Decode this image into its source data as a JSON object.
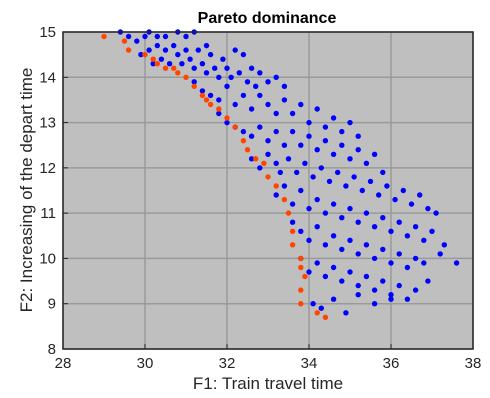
{
  "chart_data": {
    "type": "scatter",
    "title": "Pareto dominance",
    "xlabel": "F1: Train travel time",
    "ylabel": "F2: Increasing of the depart time",
    "xlim": [
      28,
      38
    ],
    "ylim": [
      8,
      15
    ],
    "x_ticks": [
      "28",
      "30",
      "32",
      "34",
      "36",
      "38"
    ],
    "y_ticks": [
      "8",
      "9",
      "10",
      "11",
      "12",
      "13",
      "14",
      "15"
    ],
    "grid": true,
    "legend": "none",
    "background": "#bfbfbf",
    "series": [
      {
        "color": "#0000ff",
        "points": [
          [
            29.4,
            15.0
          ],
          [
            29.6,
            14.9
          ],
          [
            29.8,
            14.8
          ],
          [
            30.0,
            14.9
          ],
          [
            30.1,
            15.0
          ],
          [
            30.3,
            14.9
          ],
          [
            30.5,
            14.9
          ],
          [
            30.8,
            15.0
          ],
          [
            31.0,
            14.9
          ],
          [
            31.2,
            15.0
          ],
          [
            31.5,
            14.7
          ],
          [
            29.9,
            14.5
          ],
          [
            30.1,
            14.6
          ],
          [
            30.2,
            14.3
          ],
          [
            30.3,
            14.7
          ],
          [
            30.4,
            14.4
          ],
          [
            30.5,
            14.6
          ],
          [
            30.6,
            14.3
          ],
          [
            30.7,
            14.7
          ],
          [
            30.8,
            14.5
          ],
          [
            30.9,
            14.3
          ],
          [
            31.0,
            14.6
          ],
          [
            31.1,
            14.4
          ],
          [
            31.2,
            14.2
          ],
          [
            31.3,
            14.6
          ],
          [
            31.4,
            14.3
          ],
          [
            31.5,
            14.1
          ],
          [
            31.6,
            14.5
          ],
          [
            31.7,
            14.2
          ],
          [
            31.8,
            14.0
          ],
          [
            31.9,
            14.4
          ],
          [
            32.0,
            14.2
          ],
          [
            32.1,
            14.0
          ],
          [
            32.2,
            14.6
          ],
          [
            32.3,
            14.1
          ],
          [
            32.4,
            14.5
          ],
          [
            32.5,
            13.9
          ],
          [
            32.6,
            14.2
          ],
          [
            32.7,
            13.8
          ],
          [
            32.8,
            14.1
          ],
          [
            33.0,
            13.9
          ],
          [
            33.2,
            14.0
          ],
          [
            33.4,
            13.8
          ],
          [
            31.2,
            13.9
          ],
          [
            31.4,
            13.7
          ],
          [
            31.6,
            13.6
          ],
          [
            31.8,
            13.5
          ],
          [
            32.0,
            13.8
          ],
          [
            32.2,
            13.4
          ],
          [
            32.4,
            13.6
          ],
          [
            32.6,
            13.3
          ],
          [
            32.8,
            13.6
          ],
          [
            33.0,
            13.4
          ],
          [
            33.2,
            13.2
          ],
          [
            33.4,
            13.5
          ],
          [
            33.6,
            13.2
          ],
          [
            33.8,
            13.4
          ],
          [
            34.0,
            13.0
          ],
          [
            34.2,
            13.3
          ],
          [
            34.4,
            12.9
          ],
          [
            34.6,
            13.1
          ],
          [
            34.8,
            12.8
          ],
          [
            35.0,
            13.0
          ],
          [
            35.2,
            12.7
          ],
          [
            31.8,
            13.2
          ],
          [
            32.0,
            13.0
          ],
          [
            32.2,
            12.9
          ],
          [
            32.4,
            12.8
          ],
          [
            32.6,
            12.7
          ],
          [
            32.8,
            12.9
          ],
          [
            33.0,
            12.6
          ],
          [
            33.2,
            12.8
          ],
          [
            33.4,
            12.5
          ],
          [
            33.6,
            12.8
          ],
          [
            33.8,
            12.5
          ],
          [
            34.0,
            12.7
          ],
          [
            34.2,
            12.4
          ],
          [
            34.4,
            12.6
          ],
          [
            34.6,
            12.3
          ],
          [
            34.8,
            12.5
          ],
          [
            35.0,
            12.2
          ],
          [
            35.2,
            12.4
          ],
          [
            35.4,
            12.1
          ],
          [
            35.6,
            12.3
          ],
          [
            35.8,
            11.9
          ],
          [
            32.6,
            12.2
          ],
          [
            32.8,
            12.0
          ],
          [
            33.0,
            12.3
          ],
          [
            33.2,
            12.1
          ],
          [
            33.3,
            11.9
          ],
          [
            33.5,
            12.2
          ],
          [
            33.7,
            11.9
          ],
          [
            33.9,
            12.1
          ],
          [
            34.1,
            11.8
          ],
          [
            34.3,
            12.0
          ],
          [
            34.5,
            11.7
          ],
          [
            34.7,
            11.9
          ],
          [
            34.9,
            11.6
          ],
          [
            35.1,
            11.8
          ],
          [
            35.3,
            11.5
          ],
          [
            35.5,
            11.7
          ],
          [
            35.7,
            11.4
          ],
          [
            35.9,
            11.6
          ],
          [
            36.1,
            11.3
          ],
          [
            36.3,
            11.5
          ],
          [
            36.5,
            11.2
          ],
          [
            36.7,
            11.4
          ],
          [
            36.9,
            11.1
          ],
          [
            37.1,
            11.0
          ],
          [
            33.2,
            11.4
          ],
          [
            33.4,
            11.6
          ],
          [
            33.6,
            11.2
          ],
          [
            33.8,
            11.5
          ],
          [
            34.0,
            11.1
          ],
          [
            34.2,
            11.3
          ],
          [
            34.4,
            11.0
          ],
          [
            34.6,
            11.2
          ],
          [
            34.8,
            10.9
          ],
          [
            35.0,
            11.1
          ],
          [
            35.2,
            10.8
          ],
          [
            35.4,
            11.0
          ],
          [
            35.6,
            10.7
          ],
          [
            35.8,
            10.9
          ],
          [
            36.0,
            10.6
          ],
          [
            36.2,
            10.8
          ],
          [
            36.4,
            10.5
          ],
          [
            36.6,
            10.7
          ],
          [
            36.8,
            10.4
          ],
          [
            37.0,
            10.6
          ],
          [
            37.3,
            10.3
          ],
          [
            33.6,
            10.8
          ],
          [
            33.8,
            10.6
          ],
          [
            34.0,
            10.4
          ],
          [
            34.2,
            10.7
          ],
          [
            34.4,
            10.3
          ],
          [
            34.6,
            10.5
          ],
          [
            34.8,
            10.2
          ],
          [
            35.0,
            10.4
          ],
          [
            35.2,
            10.1
          ],
          [
            35.4,
            10.3
          ],
          [
            35.6,
            10.0
          ],
          [
            35.8,
            10.2
          ],
          [
            36.0,
            9.9
          ],
          [
            36.2,
            10.1
          ],
          [
            36.4,
            9.8
          ],
          [
            36.6,
            10.0
          ],
          [
            36.8,
            9.9
          ],
          [
            37.2,
            10.1
          ],
          [
            37.6,
            9.9
          ],
          [
            33.8,
            10.0
          ],
          [
            34.0,
            9.7
          ],
          [
            34.2,
            9.9
          ],
          [
            34.4,
            9.6
          ],
          [
            34.6,
            9.8
          ],
          [
            34.8,
            9.5
          ],
          [
            35.0,
            9.7
          ],
          [
            35.2,
            9.4
          ],
          [
            35.4,
            9.6
          ],
          [
            35.6,
            9.3
          ],
          [
            35.8,
            9.5
          ],
          [
            36.0,
            9.2
          ],
          [
            36.2,
            9.4
          ],
          [
            36.4,
            9.1
          ],
          [
            36.6,
            9.3
          ],
          [
            36.9,
            9.5
          ],
          [
            34.1,
            9.0
          ],
          [
            34.3,
            8.9
          ],
          [
            34.6,
            9.1
          ],
          [
            34.9,
            8.8
          ],
          [
            35.2,
            9.2
          ],
          [
            35.6,
            9.0
          ],
          [
            36.0,
            9.1
          ]
        ]
      },
      {
        "color": "#ff4500",
        "points": [
          [
            29.0,
            14.9
          ],
          [
            29.5,
            14.8
          ],
          [
            29.6,
            14.6
          ],
          [
            30.0,
            14.5
          ],
          [
            30.2,
            14.4
          ],
          [
            30.3,
            14.3
          ],
          [
            30.5,
            14.2
          ],
          [
            30.7,
            14.2
          ],
          [
            30.8,
            14.1
          ],
          [
            31.0,
            14.0
          ],
          [
            31.2,
            13.8
          ],
          [
            31.4,
            13.6
          ],
          [
            31.5,
            13.5
          ],
          [
            31.6,
            13.4
          ],
          [
            31.8,
            13.3
          ],
          [
            32.0,
            13.1
          ],
          [
            32.2,
            12.9
          ],
          [
            32.4,
            12.6
          ],
          [
            32.5,
            12.4
          ],
          [
            32.7,
            12.2
          ],
          [
            32.9,
            12.1
          ],
          [
            33.0,
            11.8
          ],
          [
            33.2,
            11.6
          ],
          [
            33.4,
            11.3
          ],
          [
            33.5,
            11.0
          ],
          [
            33.6,
            10.6
          ],
          [
            33.6,
            10.3
          ],
          [
            33.8,
            10.0
          ],
          [
            33.8,
            9.8
          ],
          [
            33.9,
            9.6
          ],
          [
            33.8,
            9.3
          ],
          [
            33.8,
            9.0
          ],
          [
            34.2,
            8.8
          ],
          [
            34.4,
            8.7
          ]
        ]
      }
    ]
  }
}
